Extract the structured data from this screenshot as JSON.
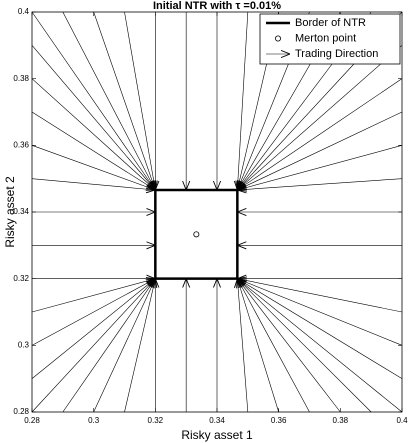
{
  "chart_data": {
    "type": "vector",
    "title": "Initial NTR with τ =0.01%",
    "xlabel": "Risky asset 1",
    "ylabel": "Risky asset 2",
    "xlim": [
      0.28,
      0.4
    ],
    "ylim": [
      0.28,
      0.4
    ],
    "xticks": [
      0.28,
      0.3,
      0.32,
      0.34,
      0.36,
      0.38,
      0.4
    ],
    "yticks": [
      0.28,
      0.3,
      0.32,
      0.34,
      0.36,
      0.38,
      0.4
    ],
    "legend": "upper right",
    "series": [
      {
        "name": "Border of NTR",
        "color": "#000000",
        "x": [
          0.32,
          0.3466,
          0.3466,
          0.32,
          0.32
        ],
        "y": [
          0.32,
          0.32,
          0.3466,
          0.3466,
          0.32
        ]
      },
      {
        "name": "Merton point",
        "color": "#000000",
        "x": [
          0.3333
        ],
        "y": [
          0.3333
        ]
      },
      {
        "name": "Trading Direction",
        "color": "#000000",
        "segments": [
          [
            0.28,
            0.4,
            0.32,
            0.3466
          ],
          [
            0.29,
            0.4,
            0.32,
            0.3466
          ],
          [
            0.3,
            0.4,
            0.32,
            0.3466
          ],
          [
            0.31,
            0.4,
            0.32,
            0.3466
          ],
          [
            0.32,
            0.4,
            0.32,
            0.3466
          ],
          [
            0.33,
            0.4,
            0.33,
            0.3466
          ],
          [
            0.34,
            0.4,
            0.34,
            0.3466
          ],
          [
            0.35,
            0.4,
            0.3466,
            0.3466
          ],
          [
            0.36,
            0.4,
            0.3466,
            0.3466
          ],
          [
            0.37,
            0.4,
            0.3466,
            0.3466
          ],
          [
            0.38,
            0.4,
            0.3466,
            0.3466
          ],
          [
            0.39,
            0.4,
            0.3466,
            0.3466
          ],
          [
            0.4,
            0.4,
            0.3466,
            0.3466
          ],
          [
            0.28,
            0.28,
            0.32,
            0.32
          ],
          [
            0.29,
            0.28,
            0.32,
            0.32
          ],
          [
            0.3,
            0.28,
            0.32,
            0.32
          ],
          [
            0.31,
            0.28,
            0.32,
            0.32
          ],
          [
            0.32,
            0.28,
            0.32,
            0.32
          ],
          [
            0.33,
            0.28,
            0.33,
            0.32
          ],
          [
            0.34,
            0.28,
            0.34,
            0.32
          ],
          [
            0.35,
            0.28,
            0.3466,
            0.32
          ],
          [
            0.36,
            0.28,
            0.3466,
            0.32
          ],
          [
            0.37,
            0.28,
            0.3466,
            0.32
          ],
          [
            0.38,
            0.28,
            0.3466,
            0.32
          ],
          [
            0.39,
            0.28,
            0.3466,
            0.32
          ],
          [
            0.4,
            0.28,
            0.3466,
            0.32
          ],
          [
            0.28,
            0.29,
            0.32,
            0.32
          ],
          [
            0.28,
            0.3,
            0.32,
            0.32
          ],
          [
            0.28,
            0.31,
            0.32,
            0.32
          ],
          [
            0.28,
            0.32,
            0.32,
            0.32
          ],
          [
            0.28,
            0.33,
            0.32,
            0.33
          ],
          [
            0.28,
            0.34,
            0.32,
            0.34
          ],
          [
            0.28,
            0.35,
            0.32,
            0.3466
          ],
          [
            0.28,
            0.36,
            0.32,
            0.3466
          ],
          [
            0.28,
            0.37,
            0.32,
            0.3466
          ],
          [
            0.28,
            0.38,
            0.32,
            0.3466
          ],
          [
            0.28,
            0.39,
            0.32,
            0.3466
          ],
          [
            0.4,
            0.29,
            0.3466,
            0.32
          ],
          [
            0.4,
            0.3,
            0.3466,
            0.32
          ],
          [
            0.4,
            0.31,
            0.3466,
            0.32
          ],
          [
            0.4,
            0.32,
            0.3466,
            0.32
          ],
          [
            0.4,
            0.33,
            0.3466,
            0.33
          ],
          [
            0.4,
            0.34,
            0.3466,
            0.34
          ],
          [
            0.4,
            0.35,
            0.3466,
            0.3466
          ],
          [
            0.4,
            0.36,
            0.3466,
            0.3466
          ],
          [
            0.4,
            0.37,
            0.3466,
            0.3466
          ],
          [
            0.4,
            0.38,
            0.3466,
            0.3466
          ],
          [
            0.4,
            0.39,
            0.3466,
            0.3466
          ]
        ]
      }
    ]
  }
}
